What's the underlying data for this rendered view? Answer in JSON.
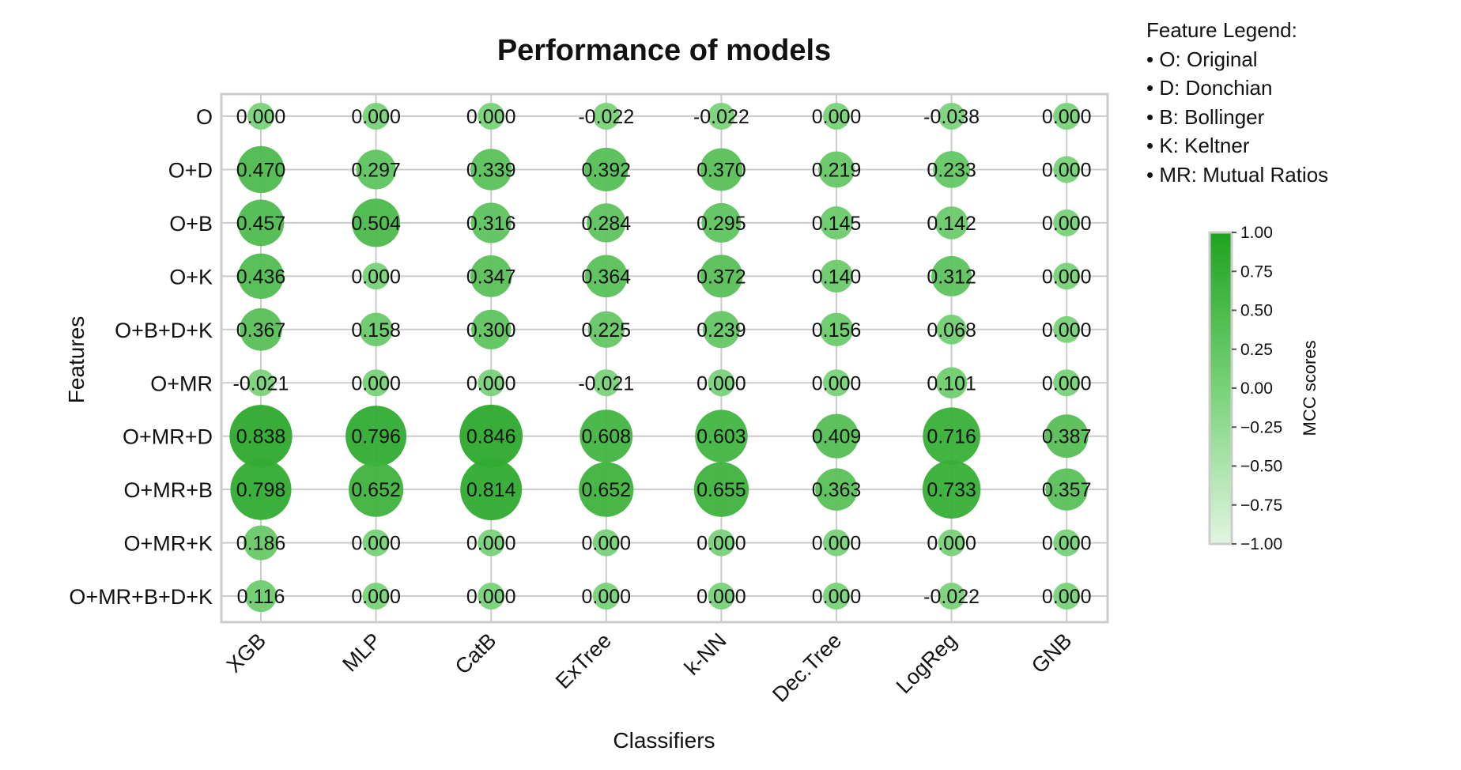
{
  "chart_data": {
    "type": "bubble-heatmap",
    "title": "Performance of models",
    "xlabel": "Classifiers",
    "ylabel": "Features",
    "x": [
      "XGB",
      "MLP",
      "CatB",
      "ExTree",
      "k-NN",
      "Dec.Tree",
      "LogReg",
      "GNB"
    ],
    "y": [
      "O",
      "O+D",
      "O+B",
      "O+K",
      "O+B+D+K",
      "O+MR",
      "O+MR+D",
      "O+MR+B",
      "O+MR+K",
      "O+MR+B+D+K"
    ],
    "values": [
      [
        0.0,
        0.0,
        0.0,
        -0.022,
        -0.022,
        0.0,
        -0.038,
        0.0
      ],
      [
        0.47,
        0.297,
        0.339,
        0.392,
        0.37,
        0.219,
        0.233,
        0.0
      ],
      [
        0.457,
        0.504,
        0.316,
        0.284,
        0.295,
        0.145,
        0.142,
        0.0
      ],
      [
        0.436,
        0.0,
        0.347,
        0.364,
        0.372,
        0.14,
        0.312,
        0.0
      ],
      [
        0.367,
        0.158,
        0.3,
        0.225,
        0.239,
        0.156,
        0.068,
        0.0
      ],
      [
        -0.021,
        0.0,
        0.0,
        -0.021,
        0.0,
        0.0,
        0.101,
        0.0
      ],
      [
        0.838,
        0.796,
        0.846,
        0.608,
        0.603,
        0.409,
        0.716,
        0.387
      ],
      [
        0.798,
        0.652,
        0.814,
        0.652,
        0.655,
        0.363,
        0.733,
        0.357
      ],
      [
        0.186,
        0.0,
        0.0,
        0.0,
        0.0,
        0.0,
        0.0,
        0.0
      ],
      [
        0.116,
        0.0,
        0.0,
        0.0,
        0.0,
        0.0,
        -0.022,
        0.0
      ]
    ],
    "value_labels": [
      [
        "0.000",
        "0.000",
        "0.000",
        "-0.022",
        "-0.022",
        "0.000",
        "-0.038",
        "0.000"
      ],
      [
        "0.470",
        "0.297",
        "0.339",
        "0.392",
        "0.370",
        "0.219",
        "0.233",
        "0.000"
      ],
      [
        "0.457",
        "0.504",
        "0.316",
        "0.284",
        "0.295",
        "0.145",
        "0.142",
        "0.000"
      ],
      [
        "0.436",
        "0.000",
        "0.347",
        "0.364",
        "0.372",
        "0.140",
        "0.312",
        "0.000"
      ],
      [
        "0.367",
        "0.158",
        "0.300",
        "0.225",
        "0.239",
        "0.156",
        "0.068",
        "0.000"
      ],
      [
        "-0.021",
        "0.000",
        "0.000",
        "-0.021",
        "0.000",
        "0.000",
        "0.101",
        "0.000"
      ],
      [
        "0.838",
        "0.796",
        "0.846",
        "0.608",
        "0.603",
        "0.409",
        "0.716",
        "0.387"
      ],
      [
        "0.798",
        "0.652",
        "0.814",
        "0.652",
        "0.655",
        "0.363",
        "0.733",
        "0.357"
      ],
      [
        "0.186",
        "0.000",
        "0.000",
        "0.000",
        "0.000",
        "0.000",
        "0.000",
        "0.000"
      ],
      [
        "0.116",
        "0.000",
        "0.000",
        "0.000",
        "0.000",
        "0.000",
        "-0.022",
        "0.000"
      ]
    ],
    "colorbar": {
      "label": "MCC scores",
      "range": [
        -1.0,
        1.0
      ],
      "ticks": [
        "1.00",
        "0.75",
        "0.50",
        "0.25",
        "0.00",
        "−0.25",
        "−0.50",
        "−0.75",
        "−1.00"
      ],
      "tick_values": [
        1.0,
        0.75,
        0.5,
        0.25,
        0.0,
        -0.25,
        -0.5,
        -0.75,
        -1.0
      ],
      "color_low": "#e1f5e1",
      "color_mid": "#78d278",
      "color_high": "#1fa21f"
    },
    "grid": true,
    "legend_position": "top-right"
  },
  "legend": {
    "title": "Feature Legend:",
    "items": [
      "• O: Original",
      "• D: Donchian",
      "• B: Bollinger",
      "• K: Keltner",
      "• MR: Mutual Ratios"
    ]
  },
  "colors": {
    "grid": "#cccccc",
    "frame": "#cccccc",
    "text": "#111111"
  }
}
